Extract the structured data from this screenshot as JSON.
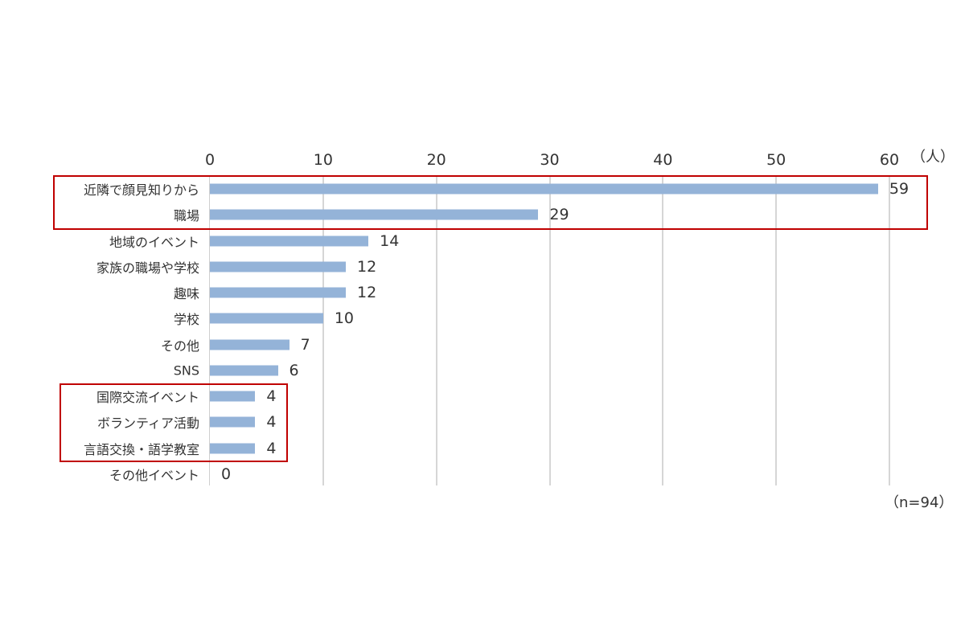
{
  "chart_data": {
    "type": "bar",
    "orientation": "horizontal",
    "title": "",
    "xlabel": "",
    "unit": "（人）",
    "note": "（n=94）",
    "xlim": [
      0,
      60
    ],
    "ticks": [
      0,
      10,
      20,
      30,
      40,
      50,
      60
    ],
    "tick_labels": [
      "0",
      "10",
      "20",
      "30",
      "40",
      "50",
      "60"
    ],
    "grid": true,
    "legend": null,
    "bar_color": "#94b3d8",
    "highlight_color": "#c00000",
    "categories": [
      "近隣で顔見知りから",
      "職場",
      "地域のイベント",
      "家族の職場や学校",
      "趣味",
      "学校",
      "その他",
      "SNS",
      "国際交流イベント",
      "ボランティア活動",
      "言語交換・語学教室",
      "その他イベント"
    ],
    "values": [
      59,
      29,
      14,
      12,
      12,
      10,
      7,
      6,
      4,
      4,
      4,
      0
    ],
    "value_labels": [
      "59",
      "29",
      "14",
      "12",
      "12",
      "10",
      "7",
      "6",
      "4",
      "4",
      "4",
      "0"
    ],
    "highlighted_groups": [
      [
        "近隣で顔見知りから",
        "職場"
      ],
      [
        "国際交流イベント",
        "ボランティア活動",
        "言語交換・語学教室"
      ]
    ]
  }
}
